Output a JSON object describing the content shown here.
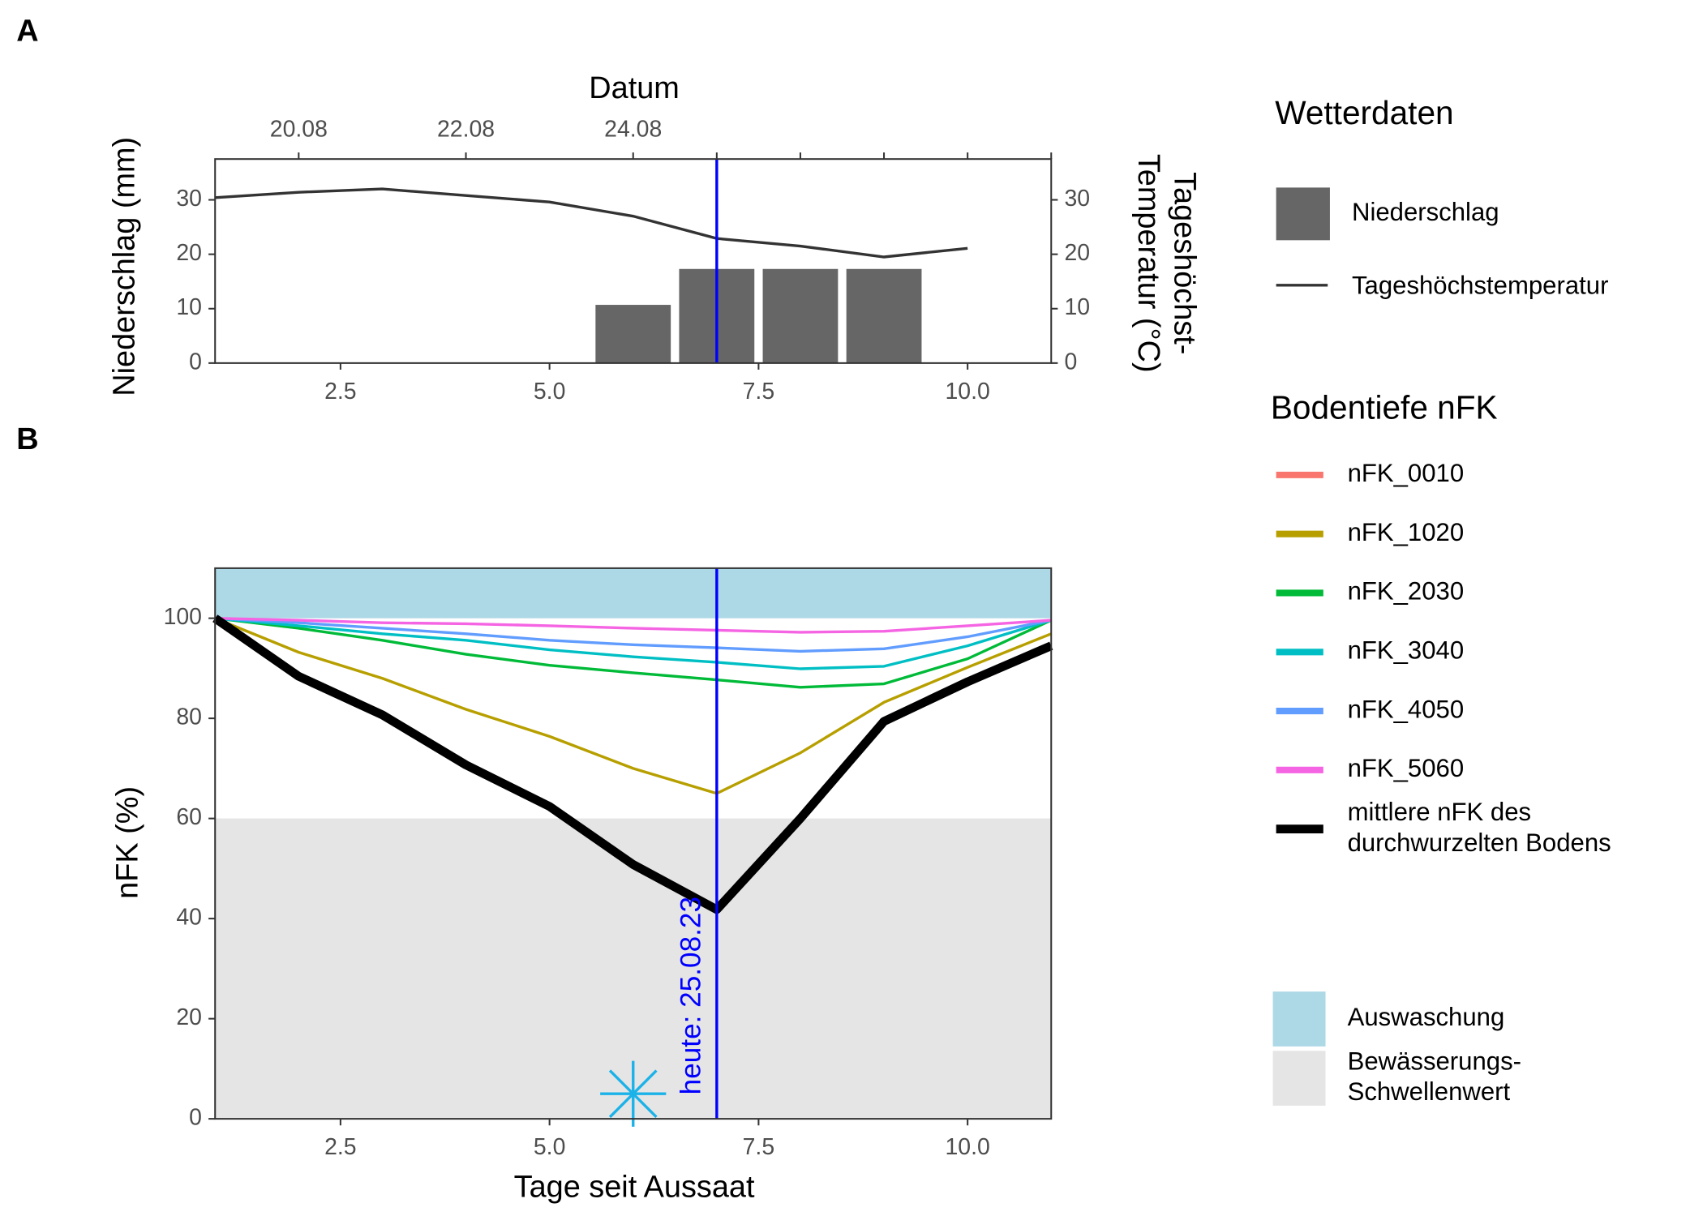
{
  "chart_data": [
    {
      "type": "combo",
      "panel_label": "A",
      "x2label": "Datum",
      "ylabel": "Niederschlag (mm)",
      "y2label": [
        "Tageshöchst-",
        "Temperatur (°C)"
      ],
      "x": [
        1,
        2,
        3,
        4,
        5,
        6,
        7,
        8,
        9,
        10
      ],
      "xlim": [
        1,
        11
      ],
      "xticks": [
        2.5,
        {
          "value": 5,
          "label": "5.0"
        },
        7.5,
        {
          "value": 10,
          "label": "10.0"
        }
      ],
      "x2ticks": [
        {
          "value": 2,
          "label": "20.08"
        },
        {
          "value": 4,
          "label": "22.08"
        },
        {
          "value": 6,
          "label": "24.08"
        },
        {
          "value": 7,
          "label": null
        },
        {
          "value": 8,
          "label": null
        },
        {
          "value": 9,
          "label": null
        },
        {
          "value": 10,
          "label": null
        },
        {
          "value": 11,
          "label": null
        }
      ],
      "ylim": [
        0,
        37.5
      ],
      "yticks": [
        0,
        10,
        20,
        30
      ],
      "y2lim": [
        0,
        37.5
      ],
      "y2ticks": [
        0,
        10,
        20,
        30
      ],
      "vline": {
        "x": 7,
        "color": "#0000ff"
      },
      "legend": {
        "title": "Wetterdaten"
      },
      "series": [
        {
          "name": "Niederschlag",
          "type": "bar",
          "color": "#666666",
          "values": [
            0,
            0,
            0,
            0,
            0,
            10.7,
            17.3,
            17.3,
            17.3,
            0
          ]
        },
        {
          "name": "Tageshöchstemperatur",
          "type": "line",
          "axis": "y2",
          "color": "#333333",
          "values": [
            30.4,
            31.4,
            32.0,
            30.8,
            29.6,
            27.0,
            22.9,
            21.5,
            19.5,
            21.1
          ]
        }
      ]
    },
    {
      "type": "line",
      "panel_label": "B",
      "xlabel": "Tage seit Aussaat",
      "ylabel": "nFK (%)",
      "x": [
        1,
        2,
        3,
        4,
        5,
        6,
        7,
        8,
        9,
        10,
        11
      ],
      "xlim": [
        1,
        11
      ],
      "xticks": [
        2.5,
        {
          "value": 5,
          "label": "5.0"
        },
        7.5,
        {
          "value": 10,
          "label": "10.0"
        }
      ],
      "ylim": [
        0,
        110
      ],
      "yticks": [
        0,
        20,
        40,
        60,
        80,
        100
      ],
      "bands": [
        {
          "name": [
            "Auswaschung"
          ],
          "from": 100,
          "to": 110,
          "color": "#add8e6"
        },
        {
          "name": [
            "Bewässerungs-",
            "Schwellenwert"
          ],
          "from": 0,
          "to": 60,
          "color": "#e5e5e5"
        }
      ],
      "vline": {
        "x": 7,
        "color": "#0000ff"
      },
      "annotation": {
        "text": "heute: 25.08.23",
        "color": "#0000ff"
      },
      "markers": [
        {
          "x": 6,
          "y": 5,
          "color": "#1ab2e8"
        }
      ],
      "legend": {
        "title": "Bodentiefe nFK"
      },
      "series": [
        {
          "name": [
            "nFK_0010"
          ],
          "color": "#f8766d",
          "linewidth": 2.5,
          "values": [
            100,
            88.4,
            80.7,
            70.7,
            62.4,
            50.8,
            41.8,
            60.0,
            79.4,
            87.3,
            94.5
          ]
        },
        {
          "name": [
            "nFK_1020"
          ],
          "color": "#b79f00",
          "linewidth": 2.5,
          "values": [
            100,
            93.2,
            88.0,
            81.8,
            76.4,
            70.0,
            65.0,
            73.1,
            83.2,
            90.2,
            96.9
          ]
        },
        {
          "name": [
            "nFK_2030"
          ],
          "color": "#00ba38",
          "linewidth": 2.5,
          "values": [
            100,
            98.0,
            95.6,
            92.8,
            90.6,
            89.1,
            87.7,
            86.2,
            86.9,
            91.9,
            99.6
          ]
        },
        {
          "name": [
            "nFK_3040"
          ],
          "color": "#00bfc4",
          "linewidth": 2.5,
          "values": [
            100,
            98.5,
            96.9,
            95.6,
            93.7,
            92.3,
            91.2,
            89.9,
            90.4,
            94.5,
            99.6
          ]
        },
        {
          "name": [
            "nFK_4050"
          ],
          "color": "#619cff",
          "linewidth": 2.5,
          "values": [
            100,
            99.1,
            98.0,
            96.9,
            95.6,
            94.7,
            94.1,
            93.4,
            93.9,
            96.3,
            99.6
          ]
        },
        {
          "name": [
            "nFK_5060"
          ],
          "color": "#f564e3",
          "linewidth": 2.5,
          "values": [
            100,
            99.6,
            99.1,
            98.9,
            98.5,
            98.0,
            97.6,
            97.2,
            97.4,
            98.5,
            99.6
          ]
        },
        {
          "name": [
            "mittlere nFK des",
            "durchwurzelten Bodens"
          ],
          "color": "#000000",
          "linewidth": 8,
          "values": [
            100,
            88.4,
            80.7,
            70.7,
            62.4,
            50.8,
            41.8,
            60.0,
            79.4,
            87.3,
            94.5
          ]
        }
      ]
    }
  ]
}
